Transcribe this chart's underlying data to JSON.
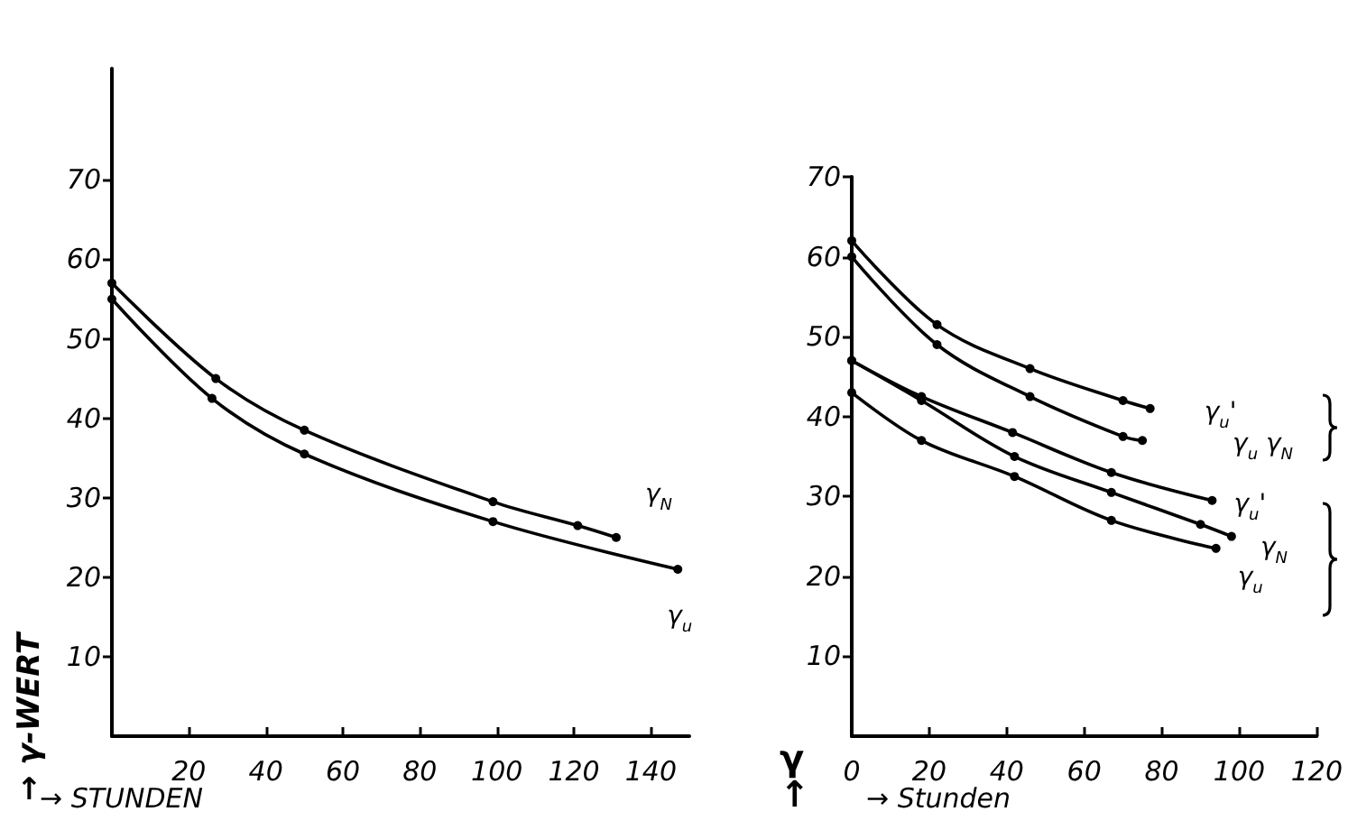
{
  "chart_data": [
    {
      "type": "line",
      "xlabel": "→ STUNDEN",
      "ylabel": "→ γ-WERT",
      "xlim": [
        0,
        150
      ],
      "ylim": [
        0,
        84
      ],
      "xticks": [
        20,
        40,
        60,
        80,
        100,
        120,
        140
      ],
      "yticks": [
        10,
        20,
        30,
        40,
        50,
        60,
        70
      ],
      "grid": false,
      "marker": "circle",
      "line_style": "solid",
      "series": [
        {
          "name": "γ$_{N}$",
          "color": "#000000",
          "x": [
            0,
            27,
            50,
            99,
            121,
            131
          ],
          "values": [
            57,
            45,
            38.5,
            29.5,
            26.5,
            25
          ]
        },
        {
          "name": "γ$_{u}$",
          "color": "#000000",
          "x": [
            0,
            26,
            50,
            99,
            147
          ],
          "values": [
            55,
            42.5,
            35.5,
            27,
            21
          ]
        }
      ]
    },
    {
      "type": "line",
      "xlabel": "→ Stunden",
      "ylabel": "γ ↑",
      "xlim": [
        0,
        120
      ],
      "ylim": [
        0,
        70
      ],
      "xticks": [
        0,
        20,
        40,
        60,
        80,
        100,
        120
      ],
      "yticks": [
        10,
        20,
        30,
        40,
        50,
        60,
        70
      ],
      "grid": false,
      "marker": "circle",
      "line_style": "solid",
      "series": [
        {
          "name": "γ$_{u}$'",
          "color": "#000000",
          "x": [
            0,
            22,
            46,
            70,
            77
          ],
          "values": [
            62,
            51.5,
            46,
            42,
            41
          ]
        },
        {
          "name": "γ$_{u}$ γ$_{N}$",
          "color": "#000000",
          "x": [
            0,
            22,
            46,
            70,
            75
          ],
          "values": [
            60,
            49,
            42.5,
            37.5,
            37
          ]
        },
        {
          "name": "γ$_{u}$'",
          "color": "#000000",
          "x": [
            0,
            18,
            41.5,
            67,
            93
          ],
          "values": [
            47,
            42.5,
            38,
            33,
            29.5
          ]
        },
        {
          "name": "γ$_{N}$",
          "color": "#000000",
          "x": [
            0,
            18,
            42,
            67,
            90,
            98
          ],
          "values": [
            47,
            42,
            35,
            30.5,
            26.5,
            25
          ]
        },
        {
          "name": "γ$_{u}$",
          "color": "#000000",
          "x": [
            0,
            18,
            42,
            67,
            94
          ],
          "values": [
            43,
            37,
            32.5,
            27,
            23.5
          ]
        }
      ]
    }
  ]
}
